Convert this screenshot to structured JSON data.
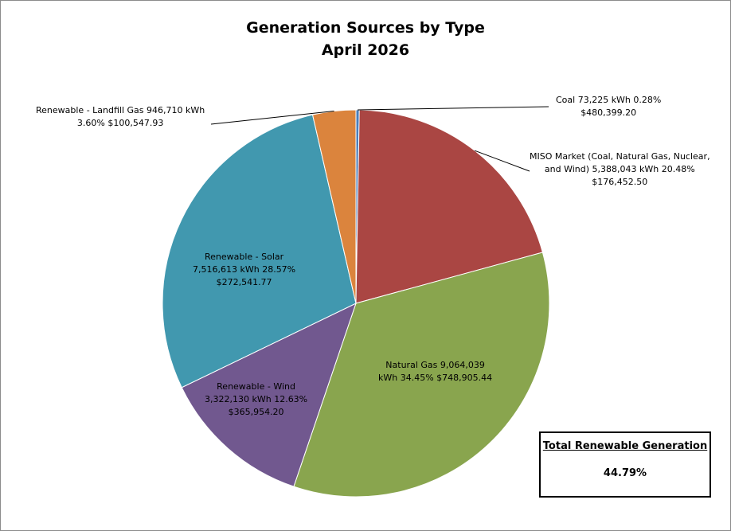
{
  "chart_data": {
    "type": "pie",
    "title": "Generation Sources by Type",
    "subtitle": "April 2026",
    "slices": [
      {
        "label": "Coal",
        "kwh": 73225,
        "kwh_text": "73,225",
        "percent": 0.28,
        "percent_text": "0.28%",
        "cost": "$480,399.20",
        "color": "#4a7ebb"
      },
      {
        "label": "MISO Market (Coal, Natural Gas, Nuclear, and Wind)",
        "kwh": 5388043,
        "kwh_text": "5,388,043",
        "percent": 20.48,
        "percent_text": "20.48%",
        "cost": "$176,452.50",
        "color": "#aa4643"
      },
      {
        "label": "Natural Gas",
        "kwh": 9064039,
        "kwh_text": "9,064,039",
        "percent": 34.45,
        "percent_text": "34.45%",
        "cost": "$748,905.44",
        "color": "#89a54e"
      },
      {
        "label": "Renewable - Wind",
        "kwh": 3322130,
        "kwh_text": "3,322,130",
        "percent": 12.63,
        "percent_text": "12.63%",
        "cost": "$365,954.20",
        "color": "#71588f"
      },
      {
        "label": "Renewable - Solar",
        "kwh": 7516613,
        "kwh_text": "7,516,613",
        "percent": 28.57,
        "percent_text": "28.57%",
        "cost": "$272,541.77",
        "color": "#4198af"
      },
      {
        "label": "Renewable - Landfill Gas",
        "kwh": 946710,
        "kwh_text": "946,710",
        "percent": 3.6,
        "percent_text": "3.60%",
        "cost": "$100,547.93",
        "color": "#db843d"
      }
    ],
    "unit": "kWh",
    "start": "12 o'clock",
    "direction": "clockwise"
  },
  "labels": {
    "coal_line1": "Coal  73,225   kWh  0.28%",
    "coal_line2": "$480,399.20",
    "miso_line1": "MISO Market (Coal, Natural Gas, Nuclear,",
    "miso_line2": "and Wind)  5,388,043   kWh  20.48%",
    "miso_line3": "$176,452.50",
    "gas_line1": "Natural Gas  9,064,039",
    "gas_line2": "kWh  34.45%  $748,905.44",
    "wind_line1": "Renewable - Wind",
    "wind_line2": "3,322,130   kWh  12.63%",
    "wind_line3": "$365,954.20",
    "solar_line1": "Renewable - Solar",
    "solar_line2": "7,516,613   kWh  28.57%",
    "solar_line3": "$272,541.77",
    "landfill_line1": "Renewable - Landfill Gas  946,710   kWh",
    "landfill_line2": "3.60%  $100,547.93"
  },
  "total_box": {
    "title": "Total Renewable Generation",
    "value": "44.79%"
  }
}
